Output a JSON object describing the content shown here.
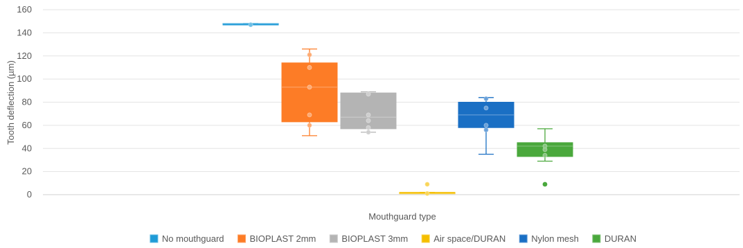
{
  "chart_data": {
    "type": "box",
    "title": "",
    "xlabel": "Mouthguard type",
    "ylabel": "Tooth deflection (µm)",
    "ylim": [
      0,
      160
    ],
    "yticks": [
      0,
      20,
      40,
      60,
      80,
      100,
      120,
      140,
      160
    ],
    "grid": true,
    "legend_position": "bottom",
    "series": [
      {
        "name": "No mouthguard",
        "color": "#1f9bd7",
        "min": 148,
        "q1": 148,
        "median": 148,
        "q3": 148,
        "max": 148,
        "points": [
          147
        ],
        "outliers": []
      },
      {
        "name": "BIOPLAST 2mm",
        "color": "#fd7c26",
        "min": 51,
        "q1": 63,
        "median": 93,
        "q3": 114,
        "max": 126,
        "points": [
          60,
          69,
          93,
          110,
          121
        ],
        "outliers": []
      },
      {
        "name": "BIOPLAST 3mm",
        "color": "#b4b4b4",
        "min": 54,
        "q1": 57,
        "median": 67,
        "q3": 88,
        "max": 89,
        "points": [
          54,
          58,
          64,
          69,
          87
        ],
        "outliers": []
      },
      {
        "name": "Air space/DURAN",
        "color": "#f5be00",
        "min": 1,
        "q1": 1,
        "median": 1,
        "q3": 2,
        "max": 2,
        "points": [
          1,
          9
        ],
        "outliers": []
      },
      {
        "name": "Nylon mesh",
        "color": "#1a6fc4",
        "min": 35,
        "q1": 58,
        "median": 69,
        "q3": 80,
        "max": 84,
        "points": [
          56,
          60,
          75,
          83
        ],
        "outliers": []
      },
      {
        "name": "DURAN",
        "color": "#4aa83c",
        "min": 29,
        "q1": 33,
        "median": 42,
        "q3": 45,
        "max": 57,
        "points": [
          34,
          39,
          42
        ],
        "outliers": [
          9
        ]
      }
    ]
  }
}
